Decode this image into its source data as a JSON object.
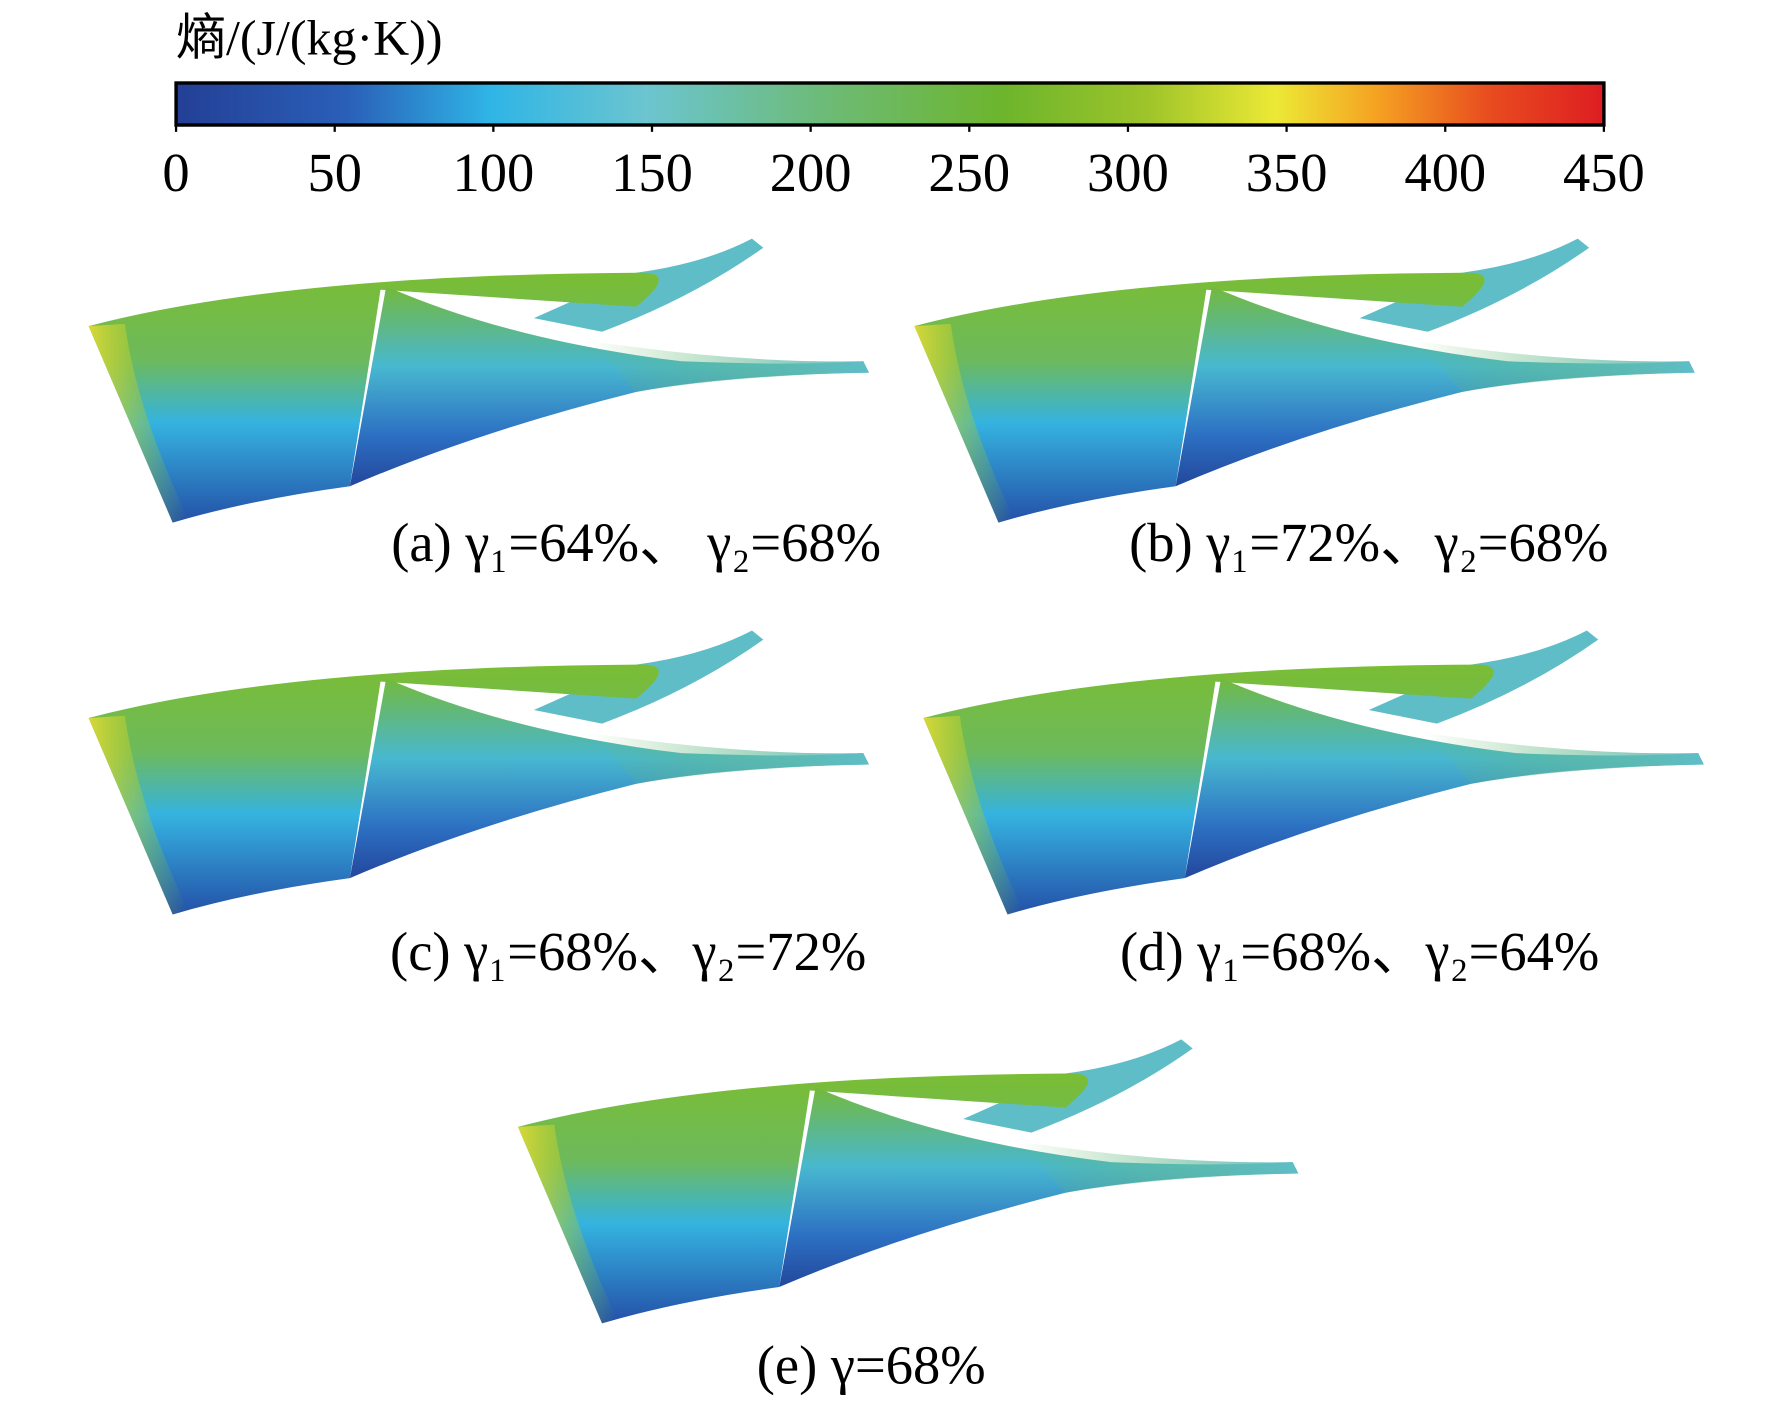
{
  "colorbar": {
    "title": "熵/(J/(kg·K))",
    "lim": [
      0,
      450
    ],
    "ticks": [
      0,
      50,
      100,
      150,
      200,
      250,
      300,
      350,
      400,
      450
    ]
  },
  "panels": [
    {
      "caption": "(a) γ₁=64%、 γ₂=68%"
    },
    {
      "caption": "(b) γ₁=72%、γ₂=68%"
    },
    {
      "caption": "(c) γ₁=68%、γ₂=72%"
    },
    {
      "caption": "(d) γ₁=68%、γ₂=64%"
    },
    {
      "caption": "(e) γ=68%"
    }
  ]
}
